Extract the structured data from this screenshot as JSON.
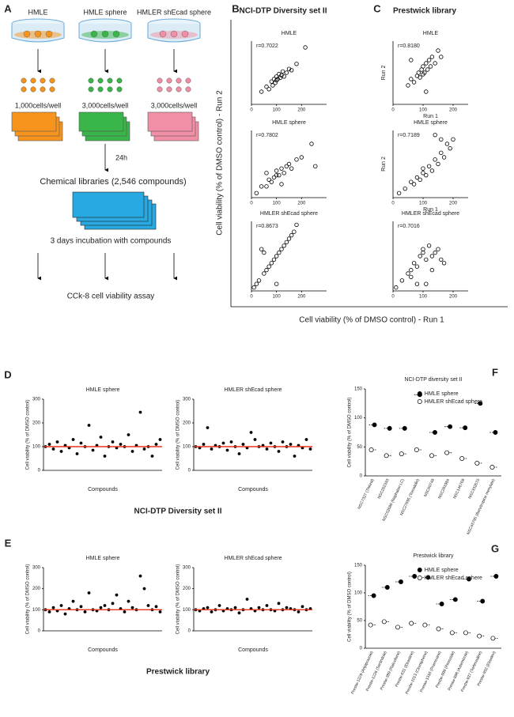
{
  "panel_a": {
    "letter": "A",
    "cells": [
      {
        "name": "HMLE",
        "density": "1,000cells/well",
        "color": "#f7941d"
      },
      {
        "name": "HMLE sphere",
        "density": "3,000cells/well",
        "color": "#39b54a"
      },
      {
        "name": "HMLER shEcad sphere",
        "density": "3,000cells/well",
        "color": "#f08fa5"
      }
    ],
    "time": "24h",
    "library": "Chemical libraries (2,546 compounds)",
    "library_color": "#29a9e1",
    "incubation": "3 days incubation with compounds",
    "assay": "CCk-8 cell viability assay"
  },
  "scatter_y_label": "Cell viability (% of DMSO control) - Run 2",
  "scatter_x_label": "Cell viability (% of DMSO control) - Run 1",
  "scatter_panels": [
    {
      "letter": "B",
      "title": "NCI-DTP Diversity set II",
      "plots": [
        {
          "title": "HMLE",
          "r": "r=0.7022",
          "xlim": [
            0,
            300
          ],
          "ylim": [
            0,
            250
          ],
          "xticks": [
            0,
            100,
            200
          ],
          "x": [
            40,
            60,
            70,
            80,
            85,
            90,
            95,
            100,
            100,
            105,
            110,
            115,
            120,
            125,
            130,
            140,
            150,
            160,
            180,
            215
          ],
          "y": [
            50,
            70,
            60,
            90,
            75,
            100,
            85,
            95,
            110,
            100,
            120,
            105,
            115,
            130,
            110,
            125,
            140,
            135,
            160,
            225
          ]
        },
        {
          "title": "HMLE sphere",
          "r": "r=0.7802",
          "xlim": [
            0,
            300
          ],
          "ylim": [
            0,
            300
          ],
          "xticks": [
            0,
            100,
            200
          ],
          "x": [
            20,
            40,
            60,
            70,
            80,
            90,
            100,
            100,
            110,
            120,
            130,
            140,
            150,
            160,
            180,
            200,
            240,
            255,
            60,
            120
          ],
          "y": [
            20,
            50,
            50,
            80,
            70,
            90,
            100,
            120,
            100,
            130,
            110,
            140,
            150,
            130,
            170,
            180,
            240,
            140,
            110,
            60
          ]
        },
        {
          "title": "HMLER shEcad sphere",
          "r": "r=0.8673",
          "xlim": [
            0,
            300
          ],
          "ylim": [
            0,
            200
          ],
          "xticks": [
            0,
            100,
            200
          ],
          "x": [
            10,
            20,
            30,
            50,
            60,
            70,
            80,
            90,
            100,
            110,
            120,
            130,
            140,
            150,
            160,
            170,
            180,
            40,
            50,
            100
          ],
          "y": [
            10,
            20,
            30,
            50,
            60,
            70,
            80,
            90,
            100,
            110,
            120,
            130,
            140,
            150,
            160,
            170,
            190,
            120,
            110,
            20
          ]
        }
      ]
    },
    {
      "letter": "C",
      "title": "Prestwick library",
      "plots": [
        {
          "title": "HMLE",
          "r": "r=0.8180",
          "x_label": "Run 1",
          "y_label": "Run 2",
          "xlim": [
            0,
            250
          ],
          "ylim": [
            0,
            200
          ],
          "xticks": [
            0,
            100,
            200
          ],
          "x": [
            50,
            60,
            70,
            80,
            85,
            90,
            95,
            100,
            100,
            105,
            110,
            115,
            120,
            125,
            130,
            140,
            150,
            160,
            60,
            110
          ],
          "y": [
            60,
            80,
            70,
            90,
            100,
            85,
            110,
            95,
            120,
            100,
            130,
            110,
            140,
            120,
            150,
            130,
            170,
            150,
            140,
            40
          ]
        },
        {
          "title": "HMLE sphere",
          "r": "r=0.7189",
          "x_label": "Run 1",
          "y_label": "Run 2",
          "xlim": [
            0,
            250
          ],
          "ylim": [
            0,
            300
          ],
          "xticks": [
            0,
            100,
            200
          ],
          "x": [
            20,
            40,
            60,
            70,
            80,
            90,
            100,
            100,
            110,
            120,
            130,
            140,
            150,
            160,
            170,
            180,
            190,
            200,
            140,
            160
          ],
          "y": [
            20,
            40,
            70,
            60,
            90,
            80,
            110,
            130,
            100,
            140,
            120,
            170,
            150,
            200,
            180,
            240,
            220,
            260,
            280,
            260
          ]
        },
        {
          "title": "HMLER shEcad sphere",
          "r": "r=0.7016",
          "xlim": [
            0,
            250
          ],
          "ylim": [
            0,
            200
          ],
          "xticks": [
            0,
            100,
            200
          ],
          "x": [
            10,
            30,
            50,
            60,
            70,
            80,
            90,
            100,
            100,
            110,
            120,
            130,
            140,
            150,
            160,
            170,
            60,
            80,
            110,
            130
          ],
          "y": [
            10,
            30,
            50,
            60,
            80,
            70,
            100,
            110,
            120,
            90,
            130,
            100,
            110,
            120,
            90,
            80,
            40,
            20,
            20,
            60
          ]
        }
      ]
    }
  ],
  "dot_panels": [
    {
      "letter": "D",
      "footer": "NCI-DTP Diversity set II",
      "y_label": "Cell viability (% of DMSO control)",
      "x_label": "Compounds",
      "ylim": [
        0,
        300
      ],
      "yticks": [
        0,
        100,
        200,
        300
      ],
      "reference": 100,
      "reference_color": "#e8321e",
      "plots": [
        {
          "title": "HMLE sphere",
          "values": [
            100,
            110,
            90,
            120,
            80,
            105,
            95,
            130,
            70,
            115,
            100,
            190,
            85,
            105,
            140,
            60,
            100,
            120,
            95,
            110,
            100,
            150,
            80,
            105,
            245,
            90,
            100,
            60,
            110,
            130
          ]
        },
        {
          "title": "HMLER shEcad sphere",
          "values": [
            100,
            95,
            110,
            180,
            90,
            105,
            100,
            115,
            85,
            120,
            100,
            70,
            110,
            95,
            160,
            130,
            100,
            105,
            90,
            115,
            100,
            80,
            120,
            100,
            110,
            60,
            105,
            95,
            130,
            90
          ]
        }
      ]
    },
    {
      "letter": "E",
      "footer": "Prestwick library",
      "y_label": "Cell viability (% of DMSO control)",
      "x_label": "Compounds",
      "ylim": [
        0,
        300
      ],
      "yticks": [
        0,
        100,
        200,
        300
      ],
      "reference": 100,
      "reference_color": "#e8321e",
      "plots": [
        {
          "title": "HMLE sphere",
          "values": [
            100,
            90,
            110,
            95,
            120,
            80,
            105,
            140,
            100,
            115,
            90,
            180,
            100,
            95,
            110,
            120,
            100,
            130,
            170,
            105,
            90,
            140,
            110,
            100,
            260,
            200,
            120,
            100,
            115,
            90
          ]
        },
        {
          "title": "HMLER shEcad sphere",
          "values": [
            100,
            95,
            105,
            110,
            90,
            100,
            120,
            95,
            105,
            100,
            110,
            85,
            100,
            150,
            105,
            95,
            110,
            100,
            120,
            100,
            95,
            130,
            100,
            110,
            105,
            100,
            90,
            115,
            100,
            105
          ]
        }
      ]
    }
  ],
  "pair_panels": [
    {
      "letter": "F",
      "title": "NCI-DTP diversity set II",
      "y_label": "Cell viability (% of DMSO control)",
      "ylim": [
        0,
        150
      ],
      "yticks": [
        0,
        50,
        100,
        150
      ],
      "categories": [
        "NSC7327 (Thioral)",
        "NSC262333",
        "NSC52688 (Naphalan LC)",
        "NSC27895 (Tomatidin)",
        "NSC60749",
        "NSC281984",
        "NSC146769",
        "NSC332670",
        "NSC45795 (Benztropine mesylate)"
      ],
      "series": [
        {
          "name": "HMLE sphere",
          "color": "#000000",
          "values": [
            88,
            82,
            82,
            140,
            75,
            85,
            83,
            125,
            75
          ]
        },
        {
          "name": "HMLER shEcad sphere",
          "color": "#ffffff",
          "values": [
            45,
            35,
            38,
            45,
            35,
            40,
            30,
            22,
            15
          ]
        }
      ]
    },
    {
      "letter": "G",
      "title": "Prestwick library",
      "y_label": "Cell viability (% of DMSO control)",
      "ylim": [
        0,
        150
      ],
      "yticks": [
        0,
        50,
        100,
        150
      ],
      "categories": [
        "Prestw-1229 (Aripiprazole)",
        "Prestw-1226 (Sertindole)",
        "Prestw-389 (Raloxifene)",
        "Prestw-631 (Ebastine)",
        "Prestw-1013 (Clomiphene)",
        "Prestw-1316 (Pramoxine)",
        "Prestw-999 (Pimozide)",
        "Prestw-898 (Astemizole)",
        "Prestw-937 (Terfenadine)",
        "Prestw-932 (Ebselen)"
      ],
      "series": [
        {
          "name": "HMLE sphere",
          "color": "#000000",
          "values": [
            95,
            110,
            120,
            130,
            128,
            80,
            88,
            125,
            85,
            130
          ]
        },
        {
          "name": "HMLER shEcad sphere",
          "color": "#ffffff",
          "values": [
            42,
            48,
            38,
            45,
            42,
            35,
            28,
            28,
            22,
            18
          ]
        }
      ]
    }
  ]
}
